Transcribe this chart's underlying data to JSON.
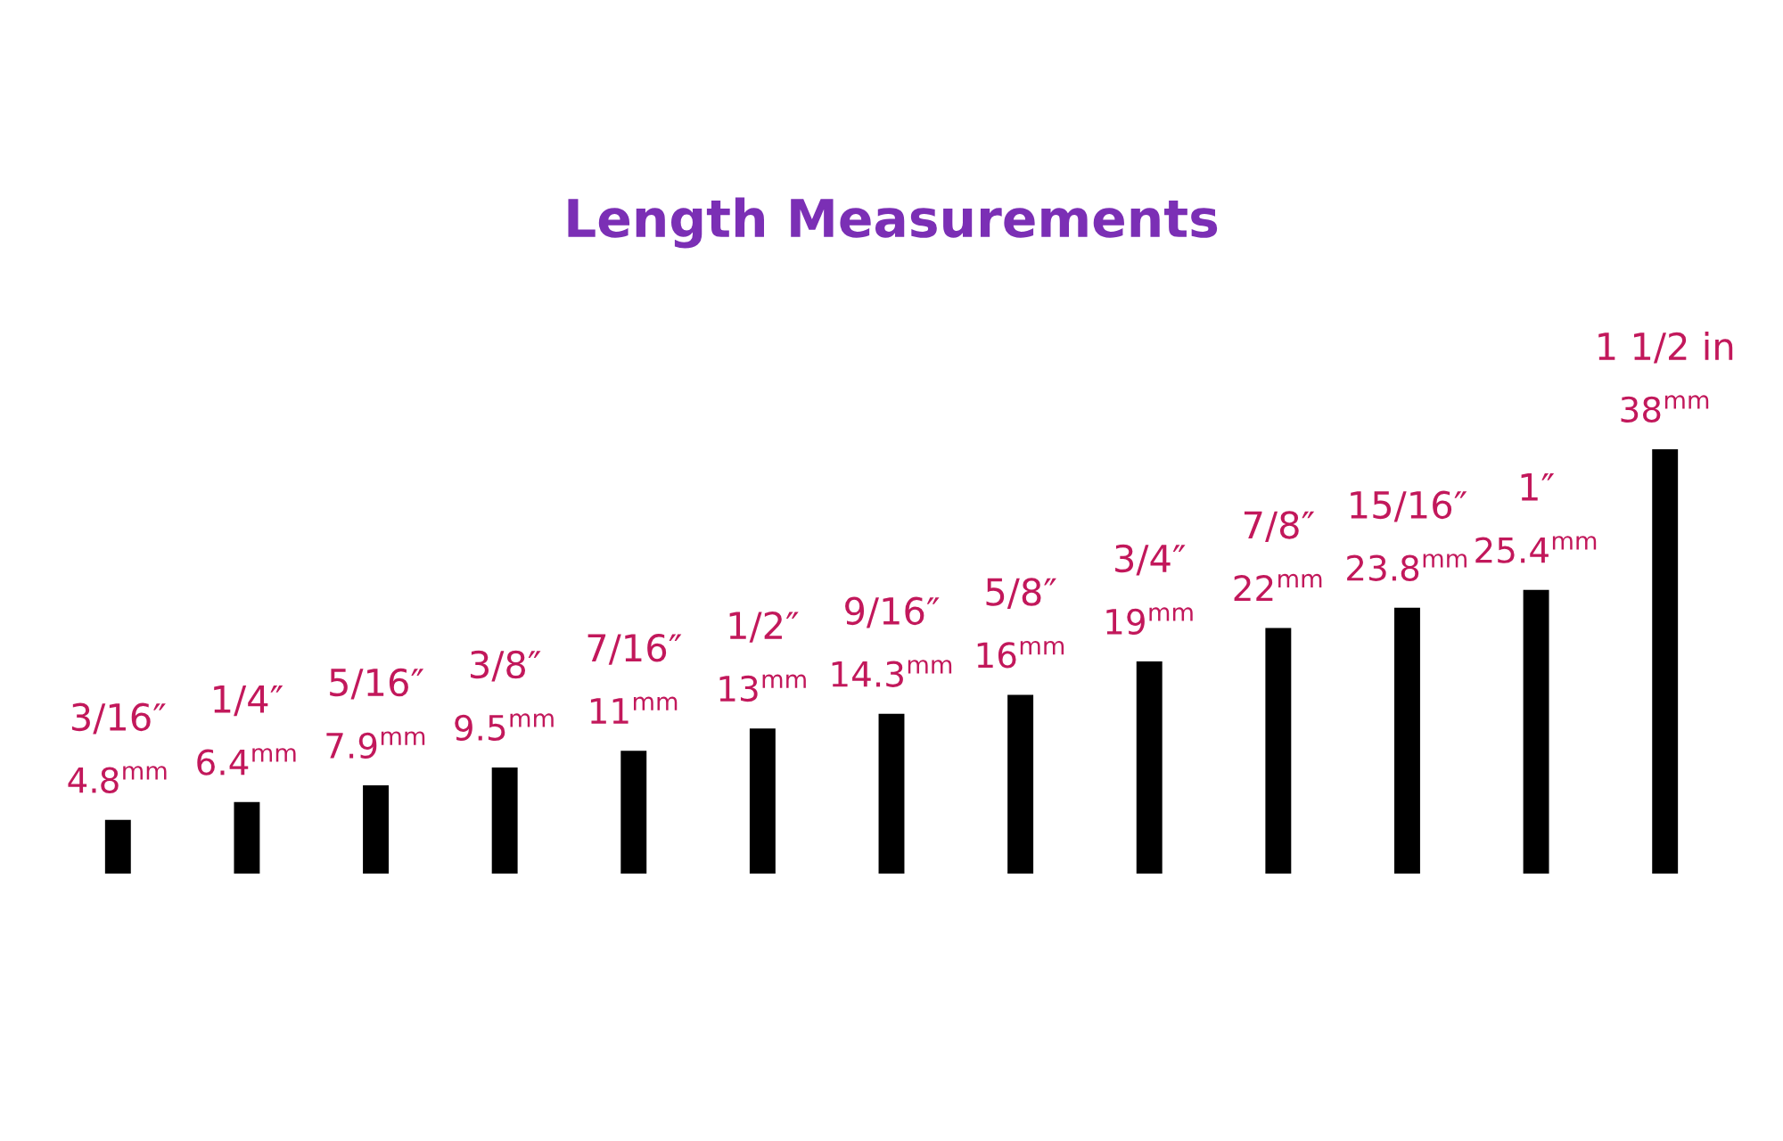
{
  "chart_data": {
    "type": "bar",
    "title": "Length Measurements",
    "categories": [
      "3/16″",
      "1/4″",
      "5/16″",
      "3/8″",
      "7/16″",
      "1/2″",
      "9/16″",
      "5/8″",
      "3/4″",
      "7/8″",
      "15/16″",
      "1″",
      "1 1/2 in"
    ],
    "values": [
      4.8,
      6.4,
      7.9,
      9.5,
      11,
      13,
      14.3,
      16,
      19,
      22,
      23.8,
      25.4,
      38
    ],
    "value_labels": [
      "4.8$^{mm}$",
      "6.4$^{mm}$",
      "7.9$^{mm}$",
      "9.5$^{mm}$",
      "11$^{mm}$",
      "13$^{mm}$",
      "14.3$^{mm}$",
      "16$^{mm}$",
      "19$^{mm}$",
      "22$^{mm}$",
      "23.8$^{mm}$",
      "25.4$^{mm}$",
      "38$^{mm}$"
    ],
    "color": "#000000"
  }
}
